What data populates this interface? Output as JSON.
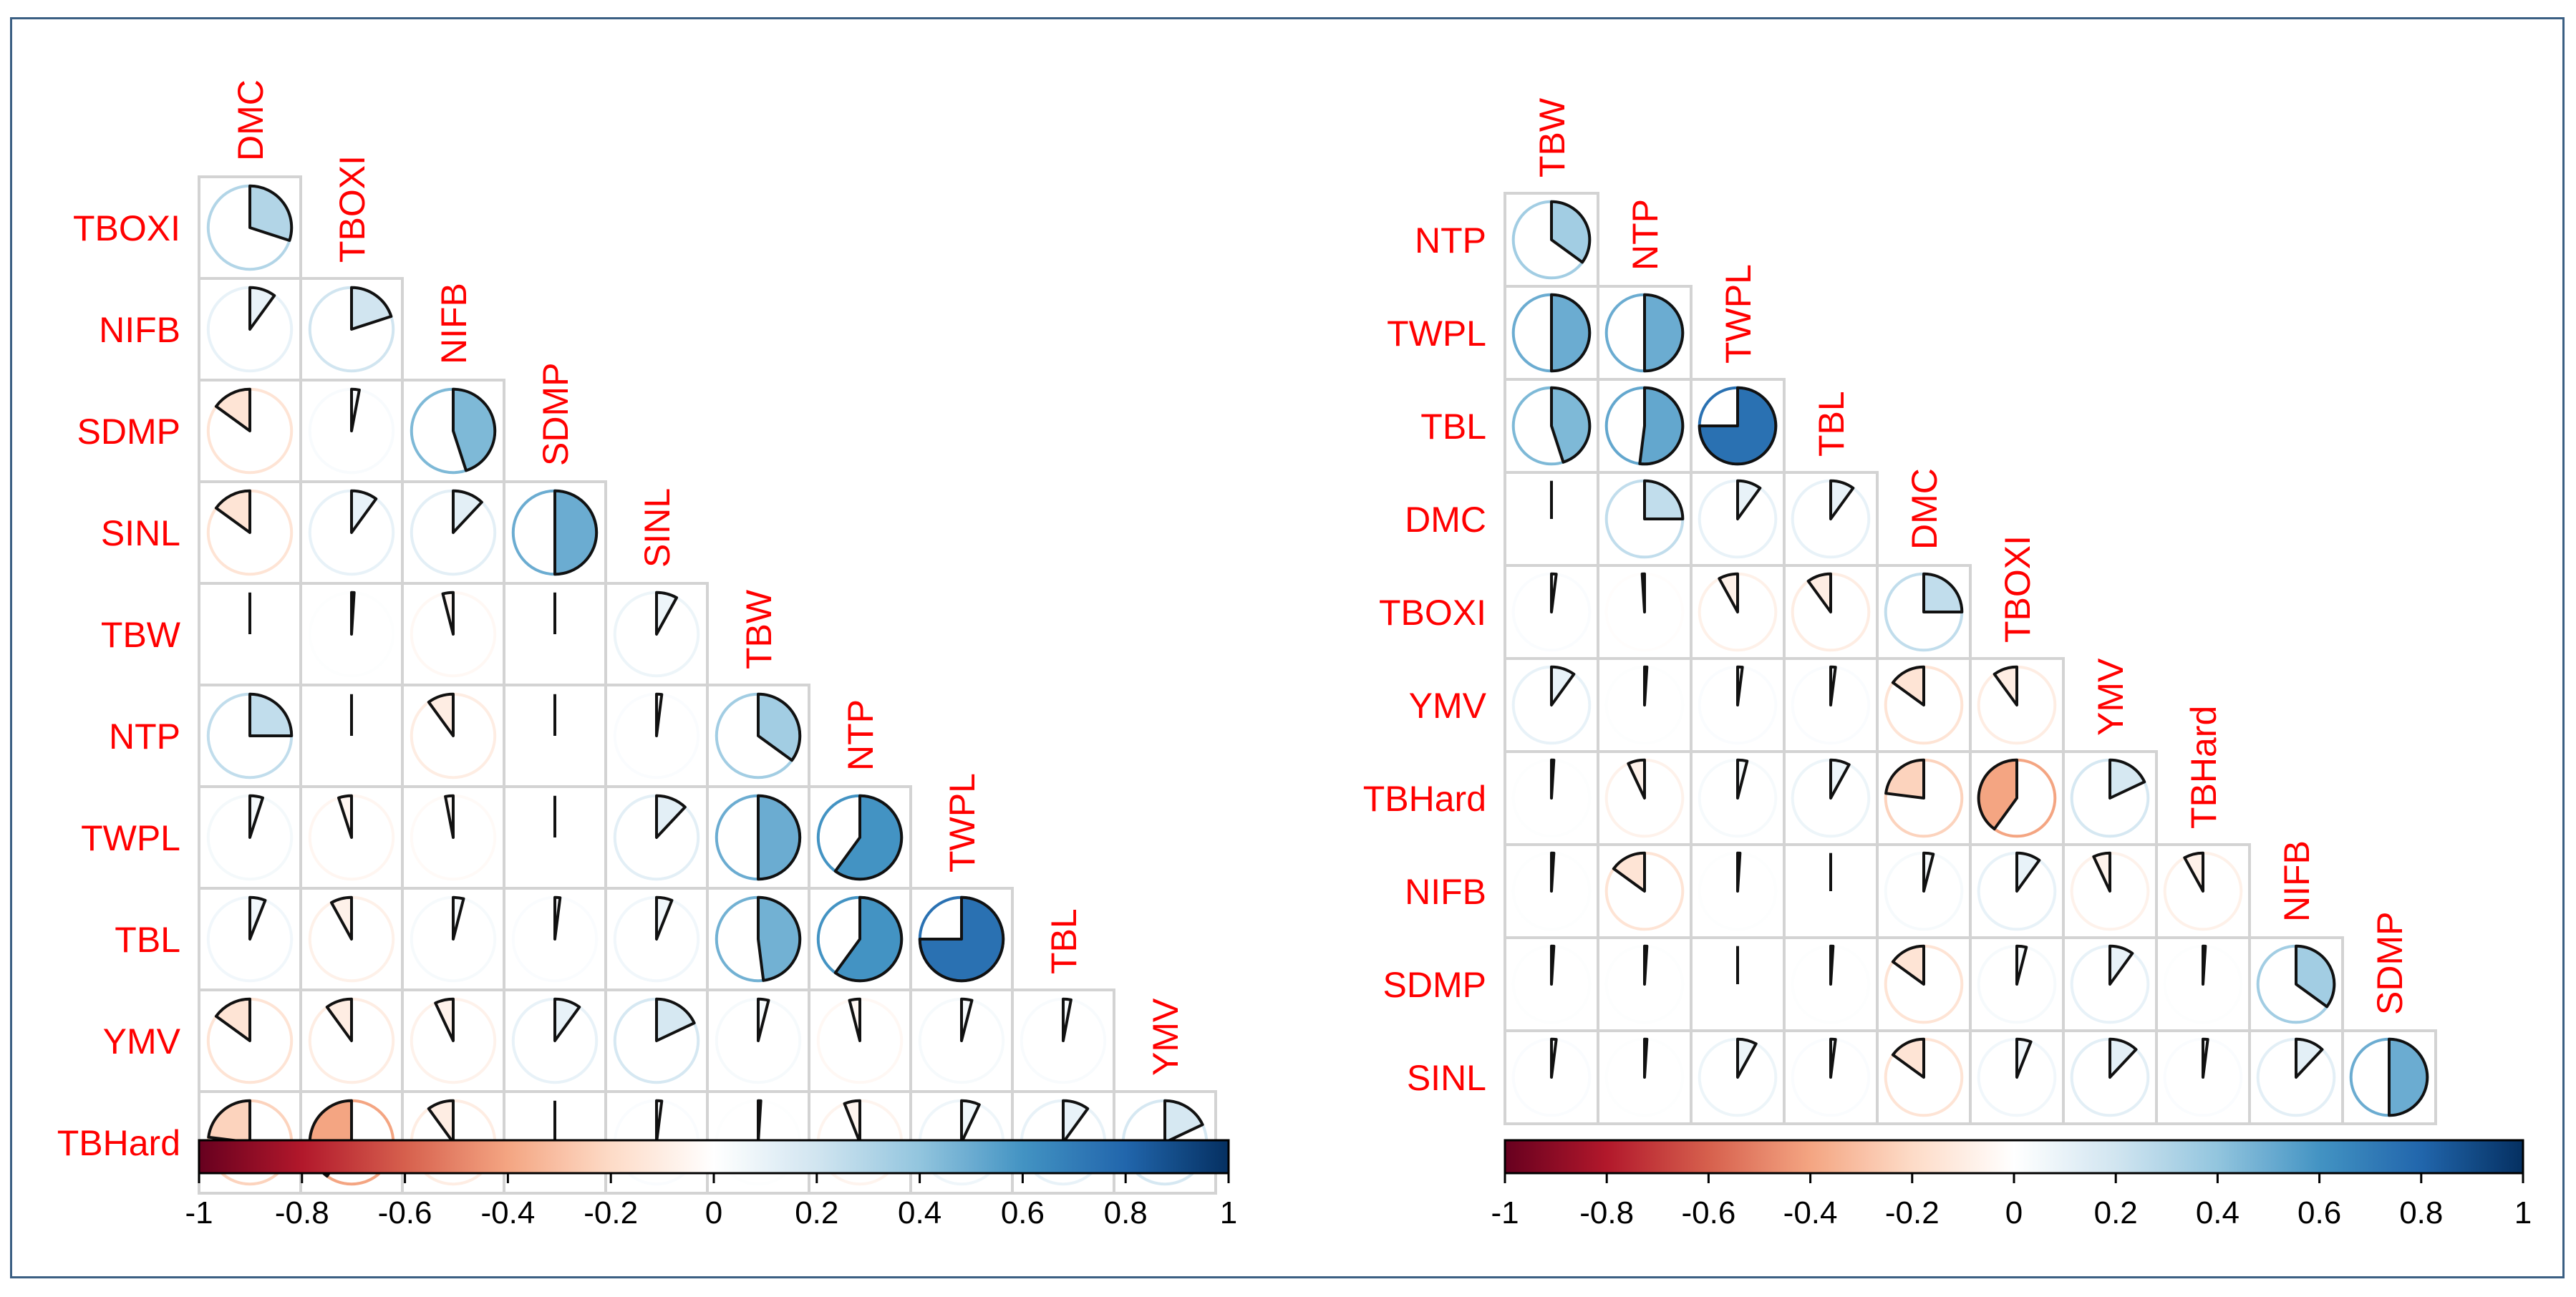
{
  "chart_data": [
    {
      "type": "heatmap",
      "title": "",
      "variables": [
        "DMC",
        "TBOXI",
        "NIFB",
        "SDMP",
        "SINL",
        "TBW",
        "NTP",
        "TWPL",
        "TBL",
        "YMV",
        "TBHard"
      ],
      "row_labels": [
        "TBOXI",
        "NIFB",
        "SDMP",
        "SINL",
        "TBW",
        "NTP",
        "TWPL",
        "TBL",
        "YMV",
        "TBHard"
      ],
      "col_labels": [
        "DMC",
        "TBOXI",
        "NIFB",
        "SDMP",
        "SINL",
        "TBW",
        "NTP",
        "TWPL",
        "TBL",
        "YMV"
      ],
      "correlations": [
        [
          0.3
        ],
        [
          0.1,
          0.2
        ],
        [
          -0.15,
          0.03,
          0.45
        ],
        [
          -0.15,
          0.1,
          0.12,
          0.5
        ],
        [
          0.0,
          0.01,
          -0.04,
          0.0,
          0.08
        ],
        [
          0.25,
          0.0,
          -0.1,
          0.0,
          0.02,
          0.35
        ],
        [
          0.05,
          -0.05,
          -0.03,
          0.0,
          0.12,
          0.5,
          0.6
        ],
        [
          0.06,
          -0.08,
          0.04,
          0.02,
          0.06,
          0.48,
          0.6,
          0.75
        ],
        [
          -0.15,
          -0.1,
          -0.07,
          0.1,
          0.18,
          0.04,
          -0.04,
          0.04,
          0.03
        ],
        [
          -0.23,
          -0.4,
          -0.1,
          0.0,
          0.02,
          0.01,
          -0.06,
          0.07,
          0.1,
          0.18
        ]
      ],
      "colorbar": {
        "min": -1,
        "max": 1,
        "ticks": [
          "-1",
          "-0.8",
          "-0.6",
          "-0.4",
          "-0.2",
          "0",
          "0.2",
          "0.4",
          "0.6",
          "0.8",
          "1"
        ]
      }
    },
    {
      "type": "heatmap",
      "title": "",
      "variables": [
        "TBW",
        "NTP",
        "TWPL",
        "TBL",
        "DMC",
        "TBOXI",
        "YMV",
        "TBHard",
        "NIFB",
        "SDMP",
        "SINL"
      ],
      "row_labels": [
        "NTP",
        "TWPL",
        "TBL",
        "DMC",
        "TBOXI",
        "YMV",
        "TBHard",
        "NIFB",
        "SDMP",
        "SINL"
      ],
      "col_labels": [
        "TBW",
        "NTP",
        "TWPL",
        "TBL",
        "DMC",
        "TBOXI",
        "YMV",
        "TBHard",
        "NIFB",
        "SDMP"
      ],
      "correlations": [
        [
          0.35
        ],
        [
          0.5,
          0.5
        ],
        [
          0.45,
          0.52,
          0.75
        ],
        [
          0.0,
          0.25,
          0.1,
          0.1
        ],
        [
          0.02,
          -0.01,
          -0.08,
          -0.1,
          0.25
        ],
        [
          0.1,
          0.01,
          0.02,
          0.02,
          -0.15,
          -0.1
        ],
        [
          0.01,
          -0.07,
          0.04,
          0.08,
          -0.23,
          -0.4,
          0.18
        ],
        [
          0.01,
          -0.15,
          0.01,
          0.0,
          0.04,
          0.1,
          -0.07,
          -0.08
        ],
        [
          0.01,
          0.01,
          0.0,
          0.01,
          -0.15,
          0.04,
          0.1,
          0.01,
          0.35
        ],
        [
          0.02,
          0.01,
          0.08,
          0.02,
          -0.15,
          0.06,
          0.12,
          0.02,
          0.12,
          0.5
        ]
      ],
      "colorbar": {
        "min": -1,
        "max": 1,
        "ticks": [
          "-1",
          "-0.8",
          "-0.6",
          "-0.4",
          "-0.2",
          "0",
          "0.2",
          "0.4",
          "0.6",
          "0.8",
          "1"
        ]
      }
    }
  ]
}
